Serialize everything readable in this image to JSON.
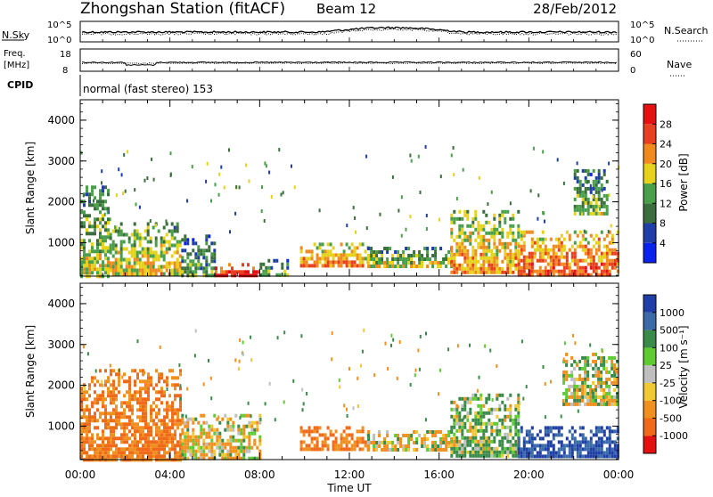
{
  "header": {
    "station": "Zhongshan Station (fitACF)",
    "beam": "Beam 12",
    "date": "28/Feb/2012"
  },
  "strips": {
    "nsky_label": "N.Sky",
    "nsky_ticks": [
      "10^5",
      "10^0"
    ],
    "nsearch_label": "N.Search",
    "nsearch_ticks": [
      "10^5",
      "10^0"
    ],
    "freq_label_1": "Freq.",
    "freq_label_2": "[MHz]",
    "freq_ticks": [
      "18",
      "8"
    ],
    "nave_label": "Nave",
    "nave_ticks": [
      "60",
      "0"
    ],
    "cpid_label": "CPID",
    "cpid_text": "normal (fast stereo) 153"
  },
  "axes": {
    "ylabel": "Slant Range [km]",
    "xlabel": "Time UT",
    "y_ticks": [
      "1000",
      "2000",
      "3000",
      "4000"
    ],
    "x_ticks": [
      "00:00",
      "04:00",
      "08:00",
      "12:00",
      "16:00",
      "20:00",
      "00:00"
    ]
  },
  "colorbars": {
    "power": {
      "label": "Power [dB]",
      "ticks": [
        "28",
        "24",
        "20",
        "16",
        "12",
        "8",
        "4"
      ],
      "colors": [
        "#0a22f0",
        "#1f3fa6",
        "#3a6e3c",
        "#4aa04a",
        "#e6d21a",
        "#f08a1e",
        "#e8401e",
        "#e61010"
      ]
    },
    "velocity": {
      "label": "Velocity [m s⁻¹]",
      "ticks": [
        "1000",
        "500",
        "100",
        "25",
        "-25",
        "-100",
        "-500",
        "-1000"
      ],
      "colors": [
        "#1f3fa6",
        "#3a6aa8",
        "#3a8a4a",
        "#5ecb32",
        "#bfbfbf",
        "#f0c832",
        "#f09020",
        "#f06a1a",
        "#e61010"
      ]
    }
  },
  "chart_data": [
    {
      "type": "heatmap",
      "title": "Power",
      "xlabel": "Time UT",
      "ylabel": "Slant Range [km]",
      "xlim": [
        0,
        24
      ],
      "ylim": [
        180,
        4500
      ],
      "colorbar": {
        "label": "Power [dB]",
        "range": [
          0,
          32
        ]
      },
      "regions": [
        {
          "t": [
            0.0,
            1.3
          ],
          "range": [
            200,
            2400
          ],
          "power_db": 14
        },
        {
          "t": [
            1.3,
            4.5
          ],
          "range": [
            200,
            1500
          ],
          "power_db": 16
        },
        {
          "t": [
            4.5,
            6.0
          ],
          "range": [
            200,
            1200
          ],
          "power_db": 10
        },
        {
          "t": [
            6.0,
            8.0
          ],
          "range": [
            180,
            500
          ],
          "power_db": 26
        },
        {
          "t": [
            8.0,
            9.3
          ],
          "range": [
            180,
            600
          ],
          "power_db": 12
        },
        {
          "t": [
            9.8,
            12.8
          ],
          "range": [
            400,
            1000
          ],
          "power_db": 20
        },
        {
          "t": [
            12.8,
            16.5
          ],
          "range": [
            400,
            900
          ],
          "power_db": 14
        },
        {
          "t": [
            16.5,
            19.5
          ],
          "range": [
            300,
            1800
          ],
          "power_db": 18
        },
        {
          "t": [
            19.5,
            24.0
          ],
          "range": [
            200,
            1300
          ],
          "power_db": 22
        },
        {
          "t": [
            22.0,
            23.5
          ],
          "range": [
            1700,
            2800
          ],
          "power_db": 12
        }
      ]
    },
    {
      "type": "heatmap",
      "title": "Velocity",
      "xlabel": "Time UT",
      "ylabel": "Slant Range [km]",
      "xlim": [
        0,
        24
      ],
      "ylim": [
        180,
        4500
      ],
      "colorbar": {
        "label": "Velocity [m s⁻¹]",
        "range": [
          -1000,
          1000
        ]
      },
      "regions": [
        {
          "t": [
            0.0,
            4.5
          ],
          "range": [
            200,
            2400
          ],
          "velocity": -500
        },
        {
          "t": [
            4.5,
            8.0
          ],
          "range": [
            200,
            1300
          ],
          "velocity": -100
        },
        {
          "t": [
            9.8,
            12.8
          ],
          "range": [
            400,
            1000
          ],
          "velocity": -500
        },
        {
          "t": [
            12.8,
            16.5
          ],
          "range": [
            400,
            900
          ],
          "velocity": -100
        },
        {
          "t": [
            16.5,
            19.5
          ],
          "range": [
            300,
            1800
          ],
          "velocity": 100
        },
        {
          "t": [
            19.5,
            24.0
          ],
          "range": [
            300,
            1000
          ],
          "velocity": 1000
        },
        {
          "t": [
            21.5,
            24.0
          ],
          "range": [
            1500,
            2800
          ],
          "velocity": 0
        }
      ]
    }
  ]
}
